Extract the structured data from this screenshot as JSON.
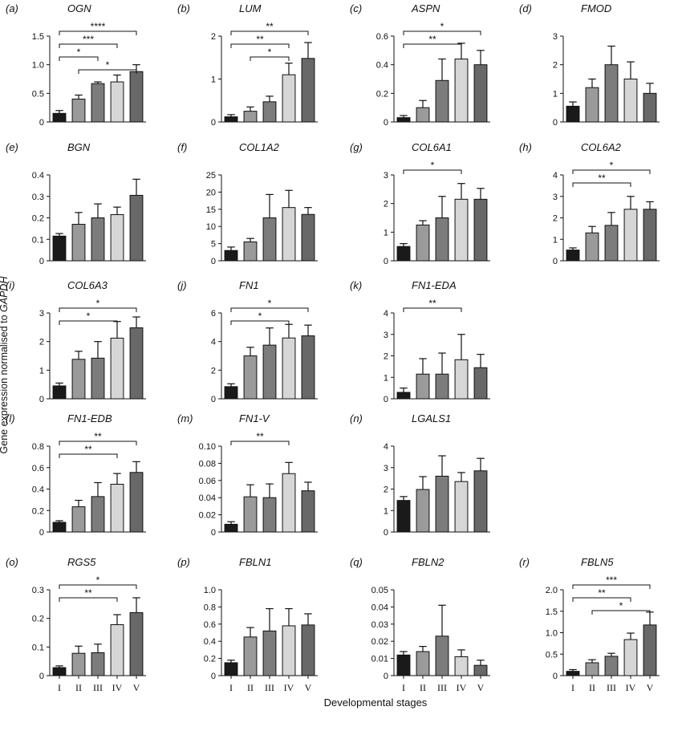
{
  "y_axis_label_prefix": "Gene expression normalised to ",
  "y_axis_label_gene": "GAPDH",
  "x_axis_label": "Developmental stages",
  "bar_colors": [
    "#1a1a1a",
    "#9a9a9a",
    "#7c7c7c",
    "#d6d6d6",
    "#686868"
  ],
  "chart_data": [
    {
      "type": "bar",
      "panel": "(a)",
      "title": "OGN",
      "categories": [
        "I",
        "II",
        "III",
        "IV",
        "V"
      ],
      "values": [
        0.15,
        0.4,
        0.67,
        0.7,
        0.88
      ],
      "errors": [
        0.05,
        0.07,
        0.03,
        0.12,
        0.12
      ],
      "ylim": [
        0,
        1.5
      ],
      "yticks": [
        "0",
        "0.5",
        "1.0",
        "1.5"
      ],
      "xticklabels": false,
      "significance": [
        {
          "from": 0,
          "to": 4,
          "label": "****"
        },
        {
          "from": 0,
          "to": 3,
          "label": "***"
        },
        {
          "from": 0,
          "to": 2,
          "label": "*"
        },
        {
          "from": 1,
          "to": 4,
          "label": "*"
        }
      ]
    },
    {
      "type": "bar",
      "panel": "(b)",
      "title": "LUM",
      "categories": [
        "I",
        "II",
        "III",
        "IV",
        "V"
      ],
      "values": [
        0.12,
        0.25,
        0.47,
        1.1,
        1.48
      ],
      "errors": [
        0.05,
        0.1,
        0.13,
        0.27,
        0.37
      ],
      "ylim": [
        0,
        2
      ],
      "yticks": [
        "0",
        "1",
        "2"
      ],
      "xticklabels": false,
      "significance": [
        {
          "from": 0,
          "to": 4,
          "label": "**"
        },
        {
          "from": 0,
          "to": 3,
          "label": "**"
        },
        {
          "from": 1,
          "to": 3,
          "label": "*"
        }
      ]
    },
    {
      "type": "bar",
      "panel": "(c)",
      "title": "ASPN",
      "categories": [
        "I",
        "II",
        "III",
        "IV",
        "V"
      ],
      "values": [
        0.03,
        0.1,
        0.29,
        0.44,
        0.4
      ],
      "errors": [
        0.015,
        0.05,
        0.15,
        0.11,
        0.1
      ],
      "ylim": [
        0,
        0.6
      ],
      "yticks": [
        "0",
        "0.2",
        "0.4",
        "0.6"
      ],
      "xticklabels": false,
      "significance": [
        {
          "from": 0,
          "to": 4,
          "label": "*"
        },
        {
          "from": 0,
          "to": 3,
          "label": "**"
        }
      ]
    },
    {
      "type": "bar",
      "panel": "(d)",
      "title": "FMOD",
      "categories": [
        "I",
        "II",
        "III",
        "IV",
        "V"
      ],
      "values": [
        0.55,
        1.2,
        2.0,
        1.5,
        1.0
      ],
      "errors": [
        0.15,
        0.3,
        0.65,
        0.6,
        0.35
      ],
      "ylim": [
        0,
        3
      ],
      "yticks": [
        "0",
        "1",
        "2",
        "3"
      ],
      "xticklabels": false,
      "significance": []
    },
    {
      "type": "bar",
      "panel": "(e)",
      "title": "BGN",
      "categories": [
        "I",
        "II",
        "III",
        "IV",
        "V"
      ],
      "values": [
        0.115,
        0.17,
        0.2,
        0.215,
        0.305
      ],
      "errors": [
        0.012,
        0.055,
        0.065,
        0.035,
        0.075
      ],
      "ylim": [
        0,
        0.4
      ],
      "yticks": [
        "0",
        "0.1",
        "0.2",
        "0.3",
        "0.4"
      ],
      "xticklabels": false,
      "significance": []
    },
    {
      "type": "bar",
      "panel": "(f)",
      "title": "COL1A2",
      "categories": [
        "I",
        "II",
        "III",
        "IV",
        "V"
      ],
      "values": [
        3.0,
        5.5,
        12.5,
        15.5,
        13.5
      ],
      "errors": [
        1.0,
        1.0,
        6.8,
        5.0,
        2.0
      ],
      "ylim": [
        0,
        25
      ],
      "yticks": [
        "0",
        "5",
        "10",
        "15",
        "20",
        "25"
      ],
      "xticklabels": false,
      "significance": []
    },
    {
      "type": "bar",
      "panel": "(g)",
      "title": "COL6A1",
      "categories": [
        "I",
        "II",
        "III",
        "IV",
        "V"
      ],
      "values": [
        0.5,
        1.25,
        1.5,
        2.15,
        2.15
      ],
      "errors": [
        0.1,
        0.15,
        0.75,
        0.55,
        0.38
      ],
      "ylim": [
        0,
        3
      ],
      "yticks": [
        "0",
        "1",
        "2",
        "3"
      ],
      "xticklabels": false,
      "significance": [
        {
          "from": 0,
          "to": 3,
          "label": "*"
        }
      ]
    },
    {
      "type": "bar",
      "panel": "(h)",
      "title": "COL6A2",
      "categories": [
        "I",
        "II",
        "III",
        "IV",
        "V"
      ],
      "values": [
        0.5,
        1.3,
        1.65,
        2.4,
        2.4
      ],
      "errors": [
        0.1,
        0.3,
        0.6,
        0.6,
        0.35
      ],
      "ylim": [
        0,
        4
      ],
      "yticks": [
        "0",
        "1",
        "2",
        "3",
        "4"
      ],
      "xticklabels": false,
      "significance": [
        {
          "from": 0,
          "to": 4,
          "label": "*"
        },
        {
          "from": 0,
          "to": 3,
          "label": "**"
        }
      ]
    },
    {
      "type": "bar",
      "panel": "(i)",
      "title": "COL6A3",
      "categories": [
        "I",
        "II",
        "III",
        "IV",
        "V"
      ],
      "values": [
        0.45,
        1.38,
        1.42,
        2.12,
        2.48
      ],
      "errors": [
        0.1,
        0.28,
        0.58,
        0.58,
        0.38
      ],
      "ylim": [
        0,
        3
      ],
      "yticks": [
        "0",
        "1",
        "2",
        "3"
      ],
      "xticklabels": false,
      "significance": [
        {
          "from": 0,
          "to": 4,
          "label": "*"
        },
        {
          "from": 0,
          "to": 3,
          "label": "*"
        }
      ]
    },
    {
      "type": "bar",
      "panel": "(j)",
      "title": "FN1",
      "categories": [
        "I",
        "II",
        "III",
        "IV",
        "V"
      ],
      "values": [
        0.85,
        3.0,
        3.75,
        4.25,
        4.4
      ],
      "errors": [
        0.2,
        0.6,
        1.2,
        0.95,
        0.75
      ],
      "ylim": [
        0,
        6
      ],
      "yticks": [
        "0",
        "2",
        "4",
        "6"
      ],
      "xticklabels": false,
      "significance": [
        {
          "from": 0,
          "to": 4,
          "label": "*"
        },
        {
          "from": 0,
          "to": 3,
          "label": "*"
        }
      ]
    },
    {
      "type": "bar",
      "panel": "(k)",
      "title": "FN1-EDA",
      "categories": [
        "I",
        "II",
        "III",
        "IV",
        "V"
      ],
      "values": [
        0.3,
        1.15,
        1.15,
        1.82,
        1.45
      ],
      "errors": [
        0.2,
        0.72,
        0.98,
        1.18,
        0.62
      ],
      "ylim": [
        0,
        4
      ],
      "yticks": [
        "0",
        "1",
        "2",
        "3",
        "4"
      ],
      "xticklabels": false,
      "significance": [
        {
          "from": 0,
          "to": 3,
          "label": "**"
        }
      ]
    },
    {
      "type": "bar",
      "panel": "(l)",
      "title": "FN1-EDB",
      "categories": [
        "I",
        "II",
        "III",
        "IV",
        "V"
      ],
      "values": [
        0.09,
        0.235,
        0.33,
        0.445,
        0.555
      ],
      "errors": [
        0.015,
        0.06,
        0.13,
        0.1,
        0.1
      ],
      "ylim": [
        0,
        0.8
      ],
      "yticks": [
        "0",
        "0.2",
        "0.4",
        "0.6",
        "0.8"
      ],
      "xticklabels": false,
      "significance": [
        {
          "from": 0,
          "to": 4,
          "label": "**"
        },
        {
          "from": 0,
          "to": 3,
          "label": "**"
        }
      ]
    },
    {
      "type": "bar",
      "panel": "(m)",
      "title": "FN1-V",
      "categories": [
        "I",
        "II",
        "III",
        "IV",
        "V"
      ],
      "values": [
        0.009,
        0.041,
        0.04,
        0.068,
        0.048
      ],
      "errors": [
        0.003,
        0.014,
        0.016,
        0.013,
        0.01
      ],
      "ylim": [
        0,
        0.1
      ],
      "yticks": [
        "0",
        "0.02",
        "0.04",
        "0.06",
        "0.08",
        "0.10"
      ],
      "xticklabels": false,
      "significance": [
        {
          "from": 0,
          "to": 3,
          "label": "**"
        }
      ]
    },
    {
      "type": "bar",
      "panel": "(n)",
      "title": "LGALS1",
      "categories": [
        "I",
        "II",
        "III",
        "IV",
        "V"
      ],
      "values": [
        1.47,
        1.98,
        2.6,
        2.35,
        2.85
      ],
      "errors": [
        0.18,
        0.6,
        0.95,
        0.42,
        0.58
      ],
      "ylim": [
        0,
        4
      ],
      "yticks": [
        "0",
        "1",
        "2",
        "3",
        "4"
      ],
      "xticklabels": false,
      "significance": []
    },
    {
      "type": "bar",
      "panel": "(o)",
      "title": "RGS5",
      "categories": [
        "I",
        "II",
        "III",
        "IV",
        "V"
      ],
      "values": [
        0.028,
        0.078,
        0.08,
        0.178,
        0.22
      ],
      "errors": [
        0.006,
        0.025,
        0.03,
        0.035,
        0.052
      ],
      "ylim": [
        0,
        0.3
      ],
      "yticks": [
        "0",
        "0.1",
        "0.2",
        "0.3"
      ],
      "xticklabels": true,
      "significance": [
        {
          "from": 0,
          "to": 4,
          "label": "*"
        },
        {
          "from": 0,
          "to": 3,
          "label": "**"
        }
      ]
    },
    {
      "type": "bar",
      "panel": "(p)",
      "title": "FBLN1",
      "categories": [
        "I",
        "II",
        "III",
        "IV",
        "V"
      ],
      "values": [
        0.15,
        0.45,
        0.52,
        0.58,
        0.59
      ],
      "errors": [
        0.03,
        0.11,
        0.26,
        0.2,
        0.13
      ],
      "ylim": [
        0,
        1
      ],
      "yticks": [
        "0",
        "0.2",
        "0.4",
        "0.6",
        "0.8",
        "1.0"
      ],
      "xticklabels": true,
      "significance": []
    },
    {
      "type": "bar",
      "panel": "(q)",
      "title": "FBLN2",
      "categories": [
        "I",
        "II",
        "III",
        "IV",
        "V"
      ],
      "values": [
        0.012,
        0.014,
        0.023,
        0.011,
        0.006
      ],
      "errors": [
        0.002,
        0.003,
        0.018,
        0.004,
        0.003
      ],
      "ylim": [
        0,
        0.05
      ],
      "yticks": [
        "0",
        "0.01",
        "0.02",
        "0.03",
        "0.04",
        "0.05"
      ],
      "xticklabels": true,
      "significance": []
    },
    {
      "type": "bar",
      "panel": "(r)",
      "title": "FBLN5",
      "categories": [
        "I",
        "II",
        "III",
        "IV",
        "V"
      ],
      "values": [
        0.1,
        0.3,
        0.45,
        0.84,
        1.18
      ],
      "errors": [
        0.04,
        0.07,
        0.07,
        0.15,
        0.3
      ],
      "ylim": [
        0,
        2
      ],
      "yticks": [
        "0",
        "0.5",
        "1.0",
        "1.5",
        "2.0"
      ],
      "xticklabels": true,
      "significance": [
        {
          "from": 0,
          "to": 4,
          "label": "***"
        },
        {
          "from": 0,
          "to": 3,
          "label": "**"
        },
        {
          "from": 1,
          "to": 4,
          "label": "*"
        }
      ]
    }
  ]
}
